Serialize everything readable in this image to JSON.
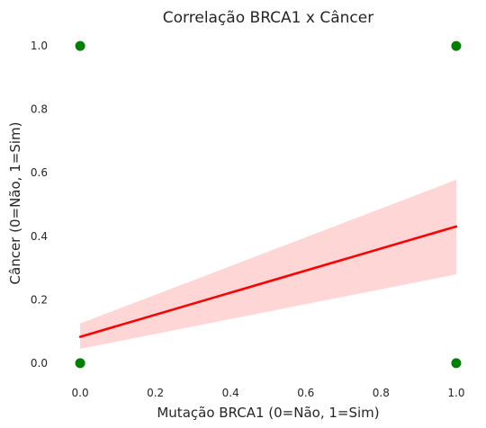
{
  "chart_data": {
    "type": "scatter",
    "title": "Correlação BRCA1 x Câncer",
    "xlabel": "Mutação BRCA1 (0=Não, 1=Sim)",
    "ylabel": "Câncer (0=Não, 1=Sim)",
    "xlim": [
      -0.06,
      1.06
    ],
    "ylim": [
      -0.06,
      1.06
    ],
    "xticks": [
      "0.0",
      "0.2",
      "0.4",
      "0.6",
      "0.8",
      "1.0"
    ],
    "yticks": [
      "0.0",
      "0.2",
      "0.4",
      "0.6",
      "0.8",
      "1.0"
    ],
    "grid": false,
    "points": [
      {
        "x": 0,
        "y": 0
      },
      {
        "x": 0,
        "y": 1
      },
      {
        "x": 1,
        "y": 0
      },
      {
        "x": 1,
        "y": 1
      }
    ],
    "regression": {
      "x": [
        0,
        1
      ],
      "y": [
        0.083,
        0.431
      ],
      "ci_lower": [
        0.045,
        0.28
      ],
      "ci_upper": [
        0.125,
        0.578
      ]
    },
    "colors": {
      "points": "#008000",
      "line": "#ff0000",
      "band": "#ffd6d6"
    }
  }
}
